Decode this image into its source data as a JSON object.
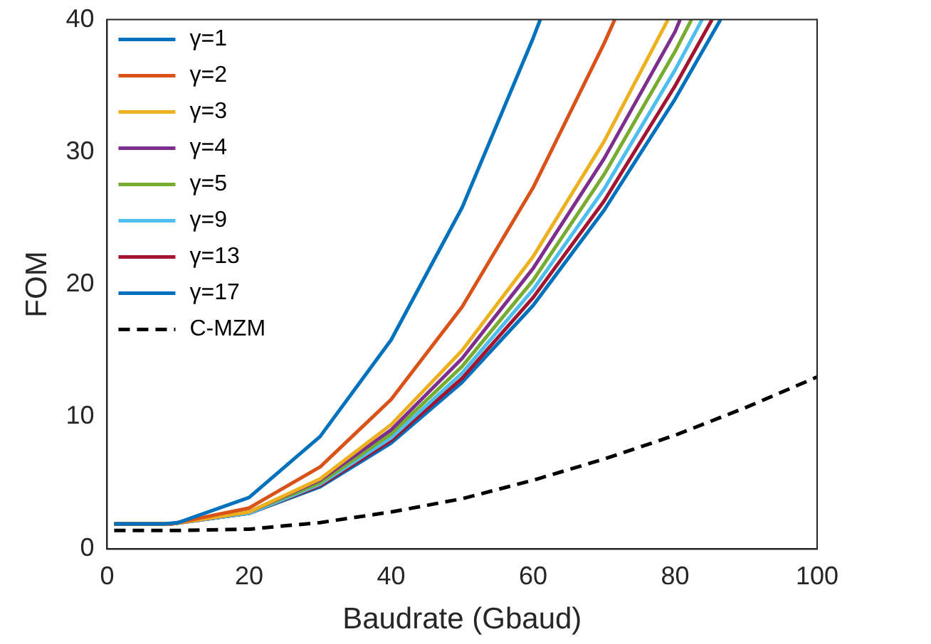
{
  "chart_data": {
    "type": "line",
    "xlabel": "Baudrate (Gbaud)",
    "ylabel": "FOM",
    "xlim": [
      0,
      100
    ],
    "xticks": [
      0,
      20,
      40,
      60,
      80,
      100
    ],
    "ylim": [
      0,
      40
    ],
    "yticks": [
      0,
      10,
      20,
      30,
      40
    ],
    "grid": false,
    "legend": "top left",
    "series": [
      {
        "name": "γ=1",
        "color": "#0072bd",
        "x": [
          1,
          8,
          10,
          20,
          30,
          40,
          50,
          60,
          61
        ],
        "values": [
          1.9,
          1.9,
          2.0,
          3.9,
          8.5,
          15.8,
          25.8,
          38.6,
          40
        ]
      },
      {
        "name": "γ=2",
        "color": "#d95319",
        "x": [
          1,
          9,
          20,
          30,
          40,
          50,
          60,
          70,
          71.5
        ],
        "values": [
          1.9,
          1.9,
          3.1,
          6.2,
          11.3,
          18.3,
          27.3,
          38.2,
          40
        ]
      },
      {
        "name": "γ=3",
        "color": "#edb120",
        "x": [
          1,
          9,
          20,
          30,
          40,
          50,
          60,
          70,
          79
        ],
        "values": [
          1.9,
          1.9,
          2.8,
          5.3,
          9.4,
          15.0,
          22.1,
          30.8,
          40
        ]
      },
      {
        "name": "γ=4",
        "color": "#7e2f8e",
        "x": [
          1,
          9,
          20,
          30,
          40,
          50,
          60,
          70,
          80,
          80.7
        ],
        "values": [
          1.9,
          1.9,
          2.8,
          5.2,
          9.0,
          14.4,
          21.2,
          29.5,
          39.1,
          40
        ]
      },
      {
        "name": "γ=5",
        "color": "#77ac30",
        "x": [
          1,
          9,
          20,
          30,
          40,
          50,
          60,
          70,
          80,
          82.3
        ],
        "values": [
          1.9,
          1.9,
          2.8,
          5.0,
          8.7,
          13.8,
          20.3,
          28.3,
          37.6,
          40
        ]
      },
      {
        "name": "γ=9",
        "color": "#4dbeee",
        "x": [
          1,
          9,
          20,
          30,
          40,
          50,
          60,
          70,
          80,
          83.8
        ],
        "values": [
          1.9,
          1.9,
          2.7,
          4.9,
          8.4,
          13.3,
          19.6,
          27.2,
          36.2,
          40
        ]
      },
      {
        "name": "γ=13",
        "color": "#a2142f",
        "x": [
          1,
          9,
          20,
          30,
          40,
          50,
          60,
          70,
          80,
          85.2
        ],
        "values": [
          1.9,
          1.9,
          2.7,
          4.8,
          8.2,
          12.9,
          19.0,
          26.3,
          35.0,
          40
        ]
      },
      {
        "name": "γ=17",
        "color": "#0072bd",
        "x": [
          1,
          9,
          20,
          30,
          40,
          50,
          60,
          70,
          80,
          86.4
        ],
        "values": [
          1.9,
          1.9,
          2.7,
          4.7,
          8.0,
          12.6,
          18.4,
          25.6,
          34.0,
          40
        ]
      },
      {
        "name": "C-MZM",
        "color": "#000000",
        "line_style": "dashed",
        "x": [
          1,
          10,
          20,
          30,
          40,
          50,
          60,
          70,
          80,
          90,
          100
        ],
        "values": [
          1.4,
          1.4,
          1.5,
          2.0,
          2.8,
          3.8,
          5.2,
          6.8,
          8.6,
          10.7,
          13.0
        ]
      }
    ]
  }
}
